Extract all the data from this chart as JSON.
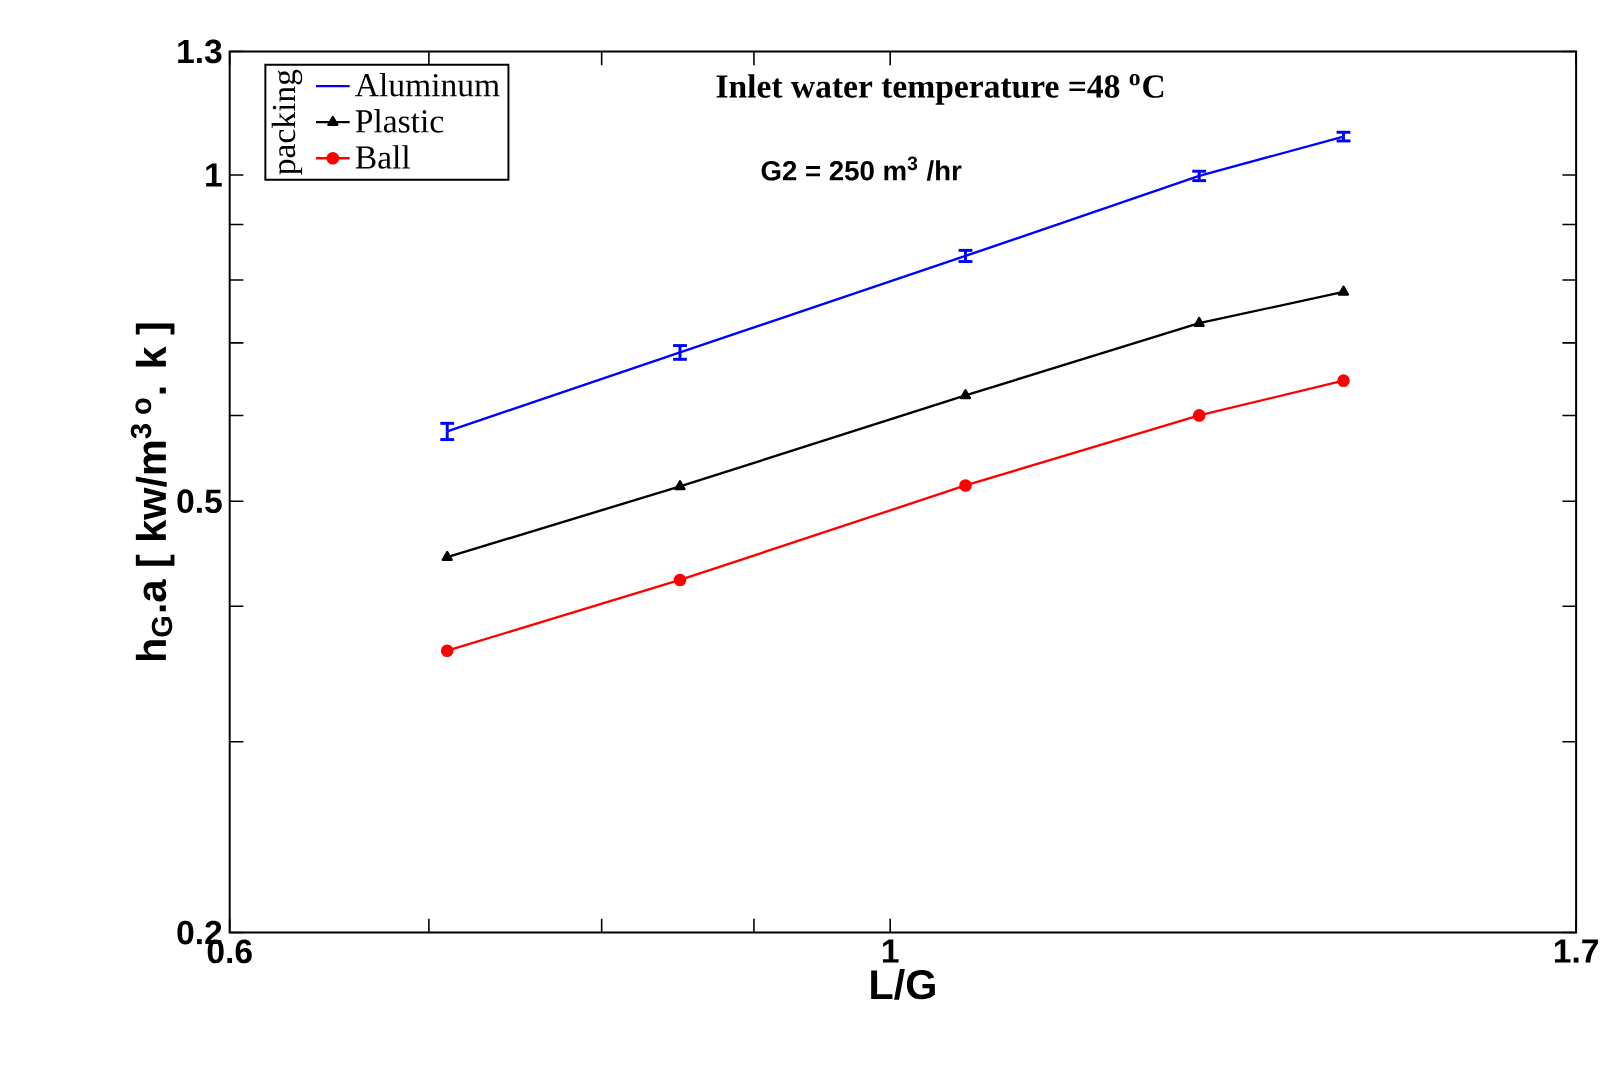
{
  "chart_data": {
    "type": "line",
    "xlabel": "L/G",
    "ylabel": "h$_{G}$.a [ kw/m$^{3 o}$. k ]",
    "legend_title": "packing",
    "annotations": [
      "Inlet water temperature =48 $^{o}$C",
      "G2 = 250 m$^{3}$ /hr"
    ],
    "x": [
      0.71,
      0.85,
      1.06,
      1.27,
      1.42
    ],
    "series": [
      {
        "name": "Aluminum",
        "color": "#0000ff",
        "marker": "none",
        "values": [
          0.58,
          0.686,
          0.842,
          0.998,
          1.085
        ],
        "errors": [
          0.01,
          0.01,
          0.01,
          0.01,
          0.01
        ]
      },
      {
        "name": "Plastic",
        "color": "#000000",
        "marker": "triangle",
        "values": [
          0.444,
          0.516,
          0.626,
          0.73,
          0.78
        ]
      },
      {
        "name": "Ball",
        "color": "#ff0000",
        "marker": "circle",
        "values": [
          0.364,
          0.423,
          0.517,
          0.6,
          0.646
        ]
      }
    ],
    "log": "xy",
    "xlim": [
      0.6,
      1.7
    ],
    "ylim": [
      0.2,
      1.3
    ],
    "xticks": [
      0.6,
      {
        "value": 0.7,
        "label": null
      },
      {
        "value": 0.8,
        "label": null
      },
      {
        "value": 0.9,
        "label": null
      },
      1,
      1.7
    ],
    "yticks": [
      0.2,
      {
        "value": 0.3,
        "label": null
      },
      {
        "value": 0.4,
        "label": null
      },
      0.5,
      {
        "value": 0.6,
        "label": null
      },
      {
        "value": 0.7,
        "label": null
      },
      {
        "value": 0.8,
        "label": null
      },
      {
        "value": 0.9,
        "label": null
      },
      1,
      1.3
    ],
    "legend": "top left",
    "line_style": "solid",
    "grid": false
  }
}
